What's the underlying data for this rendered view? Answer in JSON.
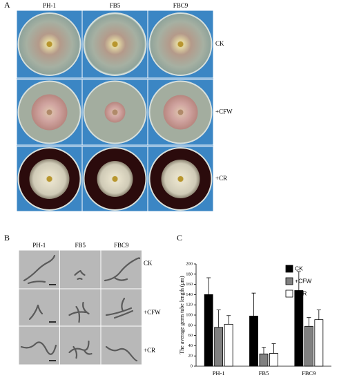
{
  "panel_a": {
    "label": "A",
    "columns": [
      "PH-1",
      "FB5",
      "FBC9"
    ],
    "rows": [
      "CK",
      "+CFW",
      "+CR"
    ]
  },
  "panel_b": {
    "label": "B",
    "columns": [
      "PH-1",
      "FB5",
      "FBC9"
    ],
    "rows": [
      "CK",
      "+CFW",
      "+CR"
    ]
  },
  "chart_data": {
    "type": "bar",
    "panel_label": "C",
    "ylabel": "The average germ tube length (μm)",
    "categories": [
      "PH-1",
      "FB5",
      "FBC9"
    ],
    "series": [
      {
        "name": "CK",
        "color": "#000000",
        "values": [
          140,
          98,
          148
        ],
        "errors": [
          33,
          45,
          37
        ]
      },
      {
        "name": "+CFW",
        "color": "#808080",
        "values": [
          76,
          24,
          78
        ],
        "errors": [
          34,
          13,
          17
        ]
      },
      {
        "name": "+CR",
        "color": "#ffffff",
        "values": [
          82,
          25,
          91
        ],
        "errors": [
          17,
          19,
          19
        ]
      }
    ],
    "ylim": [
      0,
      200
    ],
    "yticks": [
      0,
      20,
      40,
      60,
      80,
      100,
      120,
      140,
      160,
      180,
      200
    ],
    "legend": "upper right"
  }
}
